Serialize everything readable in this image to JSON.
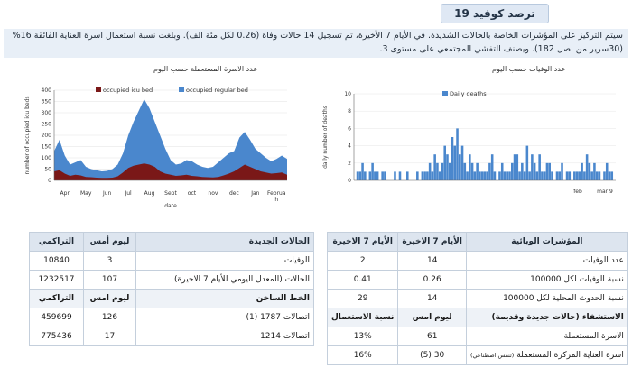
{
  "header": {
    "title": "ترصد كوفيد 19"
  },
  "summary": {
    "text": "سيتم التركيز على المؤشرات الخاصة بالحالات الشديدة. في الأيام 7 الأخيرة، تم تسجيل 14 حالات وفاة (0.26 لكل مئة الف). وبلغت نسبة استعمال اسرة العناية الفائقة 16% (30سرير من اصل 182). ويصنف التفشي المجتمعي على مستوى 3."
  },
  "charts": [
    {
      "heading": "عدد الاسرة المستعملة حسب اليوم",
      "chart_data": {
        "type": "area",
        "ylabel": "number of occupied icu beds",
        "xlabel": "date",
        "ylim": [
          0,
          400
        ],
        "yticks": [
          "0",
          "50",
          "100",
          "150",
          "200",
          "250",
          "300",
          "350",
          "400"
        ],
        "months": [
          "Apr",
          "May",
          "Jun",
          "Jul",
          "Aug",
          "Sept",
          "oct",
          "nov",
          "dec",
          "Jan",
          "Februa\nh"
        ],
        "series": [
          {
            "name": "occupied icu bed",
            "color": "#7a1818",
            "values": [
              40,
              45,
              30,
              20,
              25,
              22,
              15,
              14,
              12,
              11,
              11,
              12,
              18,
              35,
              55,
              65,
              70,
              75,
              70,
              60,
              40,
              30,
              25,
              20,
              22,
              25,
              20,
              18,
              15,
              14,
              13,
              15,
              22,
              30,
              40,
              55,
              70,
              60,
              50,
              40,
              35,
              30,
              32,
              35,
              25
            ]
          },
          {
            "name": "occupied regular bed",
            "color": "#4a87cd",
            "values": [
              130,
              180,
              110,
              70,
              80,
              90,
              60,
              50,
              45,
              40,
              42,
              50,
              70,
              120,
              200,
              260,
              310,
              360,
              320,
              260,
              200,
              140,
              90,
              70,
              75,
              90,
              85,
              70,
              60,
              55,
              60,
              80,
              100,
              120,
              130,
              190,
              215,
              180,
              140,
              120,
              100,
              85,
              95,
              110,
              95
            ]
          }
        ]
      }
    },
    {
      "heading": "عدد الوفيات حسب اليوم",
      "chart_data": {
        "type": "bar",
        "ylabel": "daily number of deaths",
        "ylim": [
          0,
          10
        ],
        "yticks": [
          "0",
          "2",
          "4",
          "6",
          "8",
          "10"
        ],
        "month_labels": [
          "feb",
          "mar 9"
        ],
        "series": [
          {
            "name": "Daily deaths",
            "color": "#4a87cd",
            "values": [
              0,
              1,
              1,
              2,
              1,
              0,
              1,
              2,
              1,
              1,
              0,
              1,
              1,
              0,
              0,
              0,
              1,
              0,
              1,
              0,
              0,
              1,
              0,
              0,
              0,
              1,
              0,
              1,
              1,
              1,
              2,
              1,
              3,
              2,
              1,
              2,
              4,
              3,
              2,
              5,
              4,
              6,
              3,
              4,
              2,
              1,
              3,
              2,
              1,
              2,
              1,
              1,
              1,
              1,
              2,
              3,
              1,
              0,
              1,
              2,
              1,
              1,
              1,
              2,
              3,
              3,
              1,
              2,
              1,
              4,
              1,
              3,
              2,
              1,
              3,
              1,
              1,
              2,
              2,
              1,
              0,
              1,
              1,
              2,
              0,
              1,
              1,
              0,
              1,
              1,
              1,
              2,
              1,
              3,
              2,
              1,
              2,
              1,
              1,
              0,
              1,
              2,
              1,
              1,
              0
            ]
          }
        ]
      }
    }
  ],
  "right_table": {
    "headers": [
      "المؤشرات الوبائية",
      "الأيام 7 الاخيرة",
      "الأيام 7 الاخيرة"
    ],
    "rows": [
      {
        "label": "عدد الوفيات",
        "v1": "14",
        "v2": "2"
      },
      {
        "label": "نسبة الوفيات لكل 100000",
        "v1": "0.26",
        "v2": "0.41"
      },
      {
        "label": "نسبة الحدوث المحلية لكل 100000",
        "v1": "14",
        "v2": "29"
      }
    ],
    "section_headers": [
      "الاستشفاء (حالات جديدة وقديمة)",
      "ليوم امس",
      "نسبة الاستعمال"
    ],
    "section_rows": [
      {
        "label": "الاسرة المستعملة",
        "v1": "61",
        "v2": "13%"
      },
      {
        "label": "اسرة العناية المركزة المستعملة",
        "note": "(تنفس اصطناعي)",
        "v1": "(5) 30",
        "v2": "16%"
      }
    ]
  },
  "left_table": {
    "headers": [
      "الحالات الجديدة",
      "ليوم أمس",
      "التراكمي"
    ],
    "rows": [
      {
        "label": "الوفيات",
        "v1": "3",
        "v2": "10840"
      },
      {
        "label": "الحالات (المعدل اليومي للأيام 7 الاخيرة)",
        "v1": "107",
        "v2": "1232517"
      }
    ],
    "section_headers": [
      "الخط الساخن",
      "ليوم امس",
      "التراكمي"
    ],
    "section_rows": [
      {
        "label": "اتصالات 1787 (1)",
        "v1": "126",
        "v2": "459699"
      },
      {
        "label": "اتصالات 1214",
        "v1": "17",
        "v2": "775436"
      }
    ]
  }
}
